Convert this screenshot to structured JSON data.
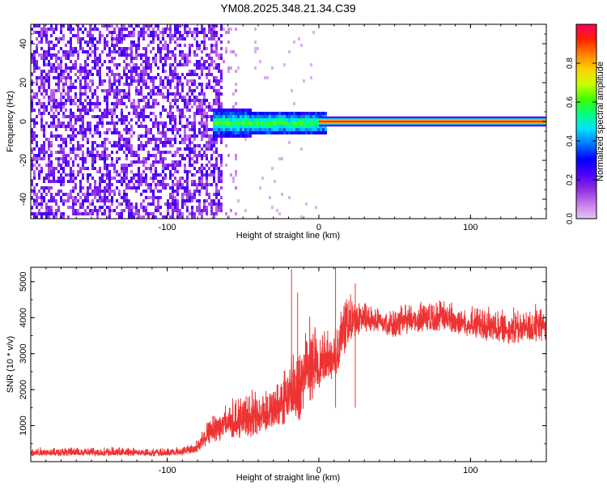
{
  "figure": {
    "title": "YM08.2025.348.21.34.C39"
  },
  "chart_data": [
    {
      "type": "heatmap",
      "xlabel": "Height of straight line (km)",
      "ylabel": "Frequency (Hz)",
      "xlim": [
        -190,
        150
      ],
      "ylim": [
        -50,
        50
      ],
      "xticks": [
        -100,
        0,
        100
      ],
      "yticks": [
        -40,
        -20,
        0,
        20,
        40
      ],
      "colorbar": {
        "label": "Normalized spectral amplitude",
        "range": [
          0,
          1
        ],
        "ticks": [
          0.0,
          0.2,
          0.4,
          0.6,
          0.8
        ],
        "colormap": [
          "#e0c8f0",
          "#c878e8",
          "#8a2be2",
          "#4b00ff",
          "#0000ff",
          "#0078ff",
          "#00e0ff",
          "#00ff80",
          "#40ff00",
          "#c8ff00",
          "#ffd000",
          "#ff8000",
          "#ff2000",
          "#ff0060"
        ]
      },
      "regions": [
        {
          "x_range": [
            -190,
            -65
          ],
          "freq_range": [
            -50,
            50
          ],
          "amplitude": 0.2
        },
        {
          "x_range": [
            -65,
            0
          ],
          "freq_range": [
            -7,
            7
          ],
          "amplitude": 0.35
        },
        {
          "x_range": [
            0,
            150
          ],
          "freq_range": [
            -1,
            1
          ],
          "amplitude": 0.9
        }
      ],
      "grid": false
    },
    {
      "type": "line",
      "xlabel": "Height of straight line (km)",
      "ylabel": "SNR (10 * v/v)",
      "xlim": [
        -190,
        150
      ],
      "ylim": [
        0,
        5400
      ],
      "xticks": [
        -100,
        0,
        100
      ],
      "yticks": [
        1000,
        2000,
        3000,
        4000,
        5000
      ],
      "color": "#ee3333",
      "envelope": {
        "x": [
          -190,
          -150,
          -100,
          -90,
          -82,
          -75,
          -70,
          -60,
          -50,
          -40,
          -30,
          -25,
          -20,
          -15,
          -10,
          -5,
          0,
          5,
          10,
          15,
          20,
          25,
          30,
          40,
          50,
          60,
          70,
          80,
          90,
          100,
          110,
          120,
          130,
          140,
          150
        ],
        "low": [
          150,
          150,
          150,
          170,
          220,
          400,
          550,
          600,
          650,
          700,
          850,
          1000,
          1100,
          800,
          1500,
          1700,
          2000,
          2300,
          2100,
          2800,
          3200,
          3500,
          3600,
          3600,
          3400,
          3550,
          3600,
          3600,
          3550,
          3400,
          3350,
          3300,
          3250,
          3300,
          3350
        ],
        "high": [
          420,
          420,
          400,
          450,
          550,
          1000,
          1500,
          1800,
          2000,
          2100,
          2200,
          2500,
          3000,
          3500,
          3800,
          4200,
          3600,
          3800,
          4000,
          4500,
          4800,
          4600,
          4500,
          4400,
          4300,
          4500,
          4600,
          4600,
          4500,
          4450,
          4400,
          4300,
          4350,
          4400,
          4450
        ]
      },
      "spikes": [
        {
          "x": -18,
          "y": 5350
        },
        {
          "x": -14,
          "y": 4700
        },
        {
          "x": 11,
          "y": 5400
        },
        {
          "x": 24,
          "y": 4950
        }
      ],
      "grid": false
    }
  ]
}
